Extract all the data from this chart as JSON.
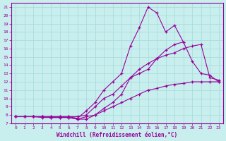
{
  "xlabel": "Windchill (Refroidissement éolien,°C)",
  "xlim": [
    -0.5,
    23.5
  ],
  "ylim": [
    7,
    21.5
  ],
  "xticks": [
    0,
    1,
    2,
    3,
    4,
    5,
    6,
    7,
    8,
    9,
    10,
    11,
    12,
    13,
    14,
    15,
    16,
    17,
    18,
    19,
    20,
    21,
    22,
    23
  ],
  "yticks": [
    7,
    8,
    9,
    10,
    11,
    12,
    13,
    14,
    15,
    16,
    17,
    18,
    19,
    20,
    21
  ],
  "bg_color": "#c8eeee",
  "line_color": "#990099",
  "grid_color": "#aadddd",
  "curves": [
    {
      "x": [
        0,
        1,
        2,
        3,
        4,
        5,
        6,
        7,
        8,
        9,
        10,
        11,
        12,
        13,
        14,
        15,
        16,
        17,
        18,
        19
      ],
      "y": [
        7.8,
        7.8,
        7.8,
        7.8,
        7.8,
        7.8,
        7.8,
        7.6,
        8.5,
        9.5,
        11.0,
        12.0,
        13.0,
        16.3,
        18.5,
        21.0,
        20.3,
        18.0,
        18.8,
        16.8
      ]
    },
    {
      "x": [
        0,
        1,
        2,
        3,
        4,
        5,
        6,
        7,
        8,
        9,
        10,
        11,
        12,
        13,
        14,
        15,
        16,
        17,
        18,
        19,
        20,
        21,
        22,
        23
      ],
      "y": [
        7.8,
        7.8,
        7.8,
        7.8,
        7.7,
        7.7,
        7.7,
        7.5,
        7.5,
        8.0,
        8.8,
        9.5,
        10.5,
        12.5,
        13.0,
        13.5,
        14.8,
        15.8,
        16.5,
        16.8,
        14.5,
        13.0,
        12.8,
        12.0
      ]
    },
    {
      "x": [
        0,
        1,
        2,
        3,
        4,
        5,
        6,
        7,
        8,
        9,
        10,
        11,
        12,
        13,
        14,
        15,
        16,
        17,
        18,
        19,
        20,
        21,
        22,
        23
      ],
      "y": [
        7.8,
        7.8,
        7.8,
        7.8,
        7.8,
        7.8,
        7.8,
        7.8,
        8.0,
        9.0,
        10.0,
        10.5,
        11.5,
        12.5,
        13.5,
        14.2,
        14.8,
        15.2,
        15.5,
        16.0,
        16.3,
        16.5,
        12.5,
        12.2
      ]
    },
    {
      "x": [
        0,
        1,
        2,
        3,
        4,
        5,
        6,
        7,
        8,
        9,
        10,
        11,
        12,
        13,
        14,
        15,
        16,
        17,
        18,
        19,
        20,
        21,
        22,
        23
      ],
      "y": [
        7.8,
        7.8,
        7.8,
        7.7,
        7.7,
        7.7,
        7.7,
        7.5,
        7.8,
        8.0,
        8.5,
        9.0,
        9.5,
        10.0,
        10.5,
        11.0,
        11.2,
        11.5,
        11.7,
        11.8,
        12.0,
        12.0,
        12.0,
        12.0
      ]
    }
  ]
}
